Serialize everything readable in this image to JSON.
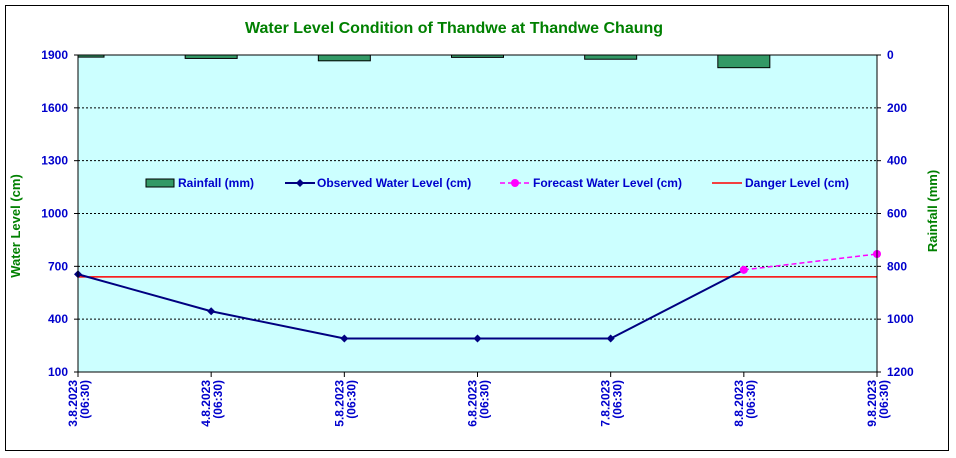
{
  "colors": {
    "plot_background": "#ccffff",
    "rainfall_fill": "#339966",
    "observed_line": "#000080",
    "forecast_line": "#ff00ff",
    "danger_line": "#ff0000",
    "title_color": "#008000",
    "axis_title_color": "#008000",
    "tick_color": "#0000cc"
  },
  "chart_data": {
    "type": "line",
    "title": "Water Level Condition of Thandwe at Thandwe Chaung",
    "ylabel": "Water Level (cm)",
    "y2label": "Rainfall (mm)",
    "categories": [
      [
        "3.8.2023",
        "(06:30)"
      ],
      [
        "4.8.2023",
        "(06:30)"
      ],
      [
        "5.8.2023",
        "(06:30)"
      ],
      [
        "6.8.2023",
        "(06:30)"
      ],
      [
        "7.8.2023",
        "(06:30)"
      ],
      [
        "8.8.2023",
        "(06:30)"
      ],
      [
        "9.8.2023",
        "(06:30)"
      ]
    ],
    "ylim": [
      100,
      1900
    ],
    "yticks": [
      100,
      400,
      700,
      1000,
      1300,
      1600,
      1900
    ],
    "y2lim": [
      0,
      1200
    ],
    "y2_inverted": true,
    "y2ticks": [
      0,
      200,
      400,
      600,
      800,
      1000,
      1200
    ],
    "grid": true,
    "legend_position": "center",
    "series": [
      {
        "name": "Rainfall (mm)",
        "kind": "bar",
        "axis": "right",
        "values": [
          8,
          13,
          22,
          9,
          16,
          48,
          null
        ]
      },
      {
        "name": "Observed Water Level (cm)",
        "kind": "line",
        "axis": "left",
        "marker": "diamond",
        "values": [
          655,
          445,
          290,
          290,
          290,
          680,
          null
        ]
      },
      {
        "name": "Forecast Water Level (cm)",
        "kind": "line",
        "axis": "left",
        "marker": "circle",
        "dashed": true,
        "values": [
          null,
          null,
          null,
          null,
          null,
          680,
          770
        ]
      },
      {
        "name": "Danger Level (cm)",
        "kind": "line",
        "axis": "left",
        "values": [
          640,
          640,
          640,
          640,
          640,
          640,
          640
        ]
      }
    ]
  }
}
